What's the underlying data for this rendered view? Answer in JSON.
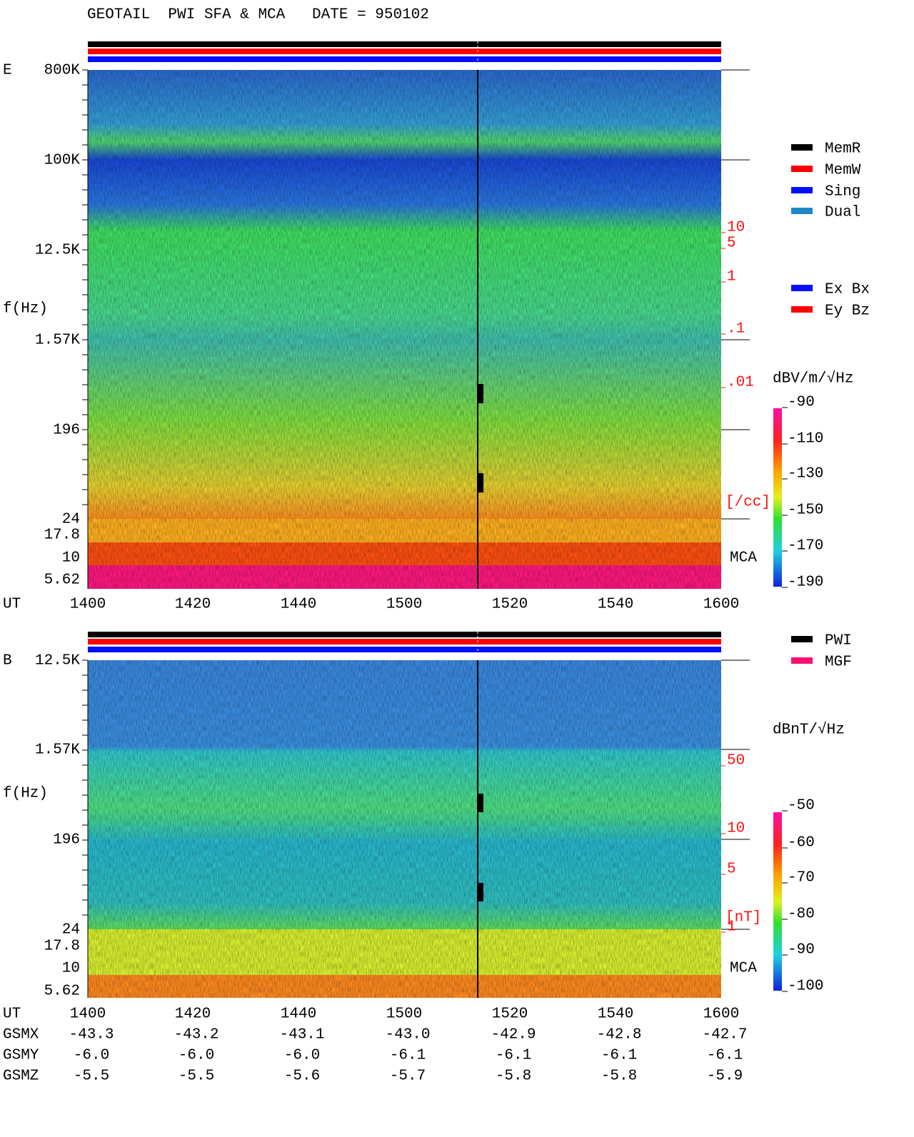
{
  "header": {
    "title": "GEOTAIL  PWI SFA & MCA   DATE = 950102"
  },
  "panels": [
    {
      "label": "E",
      "y_axis_label": "f(Hz)",
      "freq_labels": [
        "800K",
        "100K",
        "12.5K",
        "1.57K",
        "196",
        "24",
        "17.8",
        "10",
        "5.62"
      ],
      "mca_label": "MCA",
      "scale_labels": [
        "10",
        "5",
        "1",
        ".1",
        ".01"
      ],
      "scale_unit": "[/cc]",
      "unit": "dBV/m/√Hz",
      "colorbar_labels": [
        "-90",
        "-110",
        "-130",
        "-150",
        "-170",
        "-190"
      ]
    },
    {
      "label": "B",
      "y_axis_label": "f(Hz)",
      "freq_labels": [
        "12.5K",
        "1.57K",
        "196",
        "24",
        "17.8",
        "10",
        "5.62"
      ],
      "mca_label": "MCA",
      "scale_labels": [
        "50",
        "10",
        "5",
        "1"
      ],
      "scale_unit": "[nT]",
      "unit": "dBnT/√Hz",
      "colorbar_labels": [
        "-50",
        "-60",
        "-70",
        "-80",
        "-90",
        "-100"
      ]
    }
  ],
  "legends": {
    "status": [
      "MemR",
      "MemW",
      "Sing",
      "Dual"
    ],
    "components": [
      "Ex Bx",
      "Ey Bz"
    ],
    "sources": [
      "PWI",
      "MGF"
    ]
  },
  "time_axis": {
    "label": "UT",
    "ticks": [
      "1400",
      "1420",
      "1440",
      "1500",
      "1520",
      "1540",
      "1600"
    ]
  },
  "orbit": {
    "rows": [
      {
        "label": "GSMX",
        "values": [
          "-43.3",
          "-43.2",
          "-43.1",
          "-43.0",
          "-42.9",
          "-42.8",
          "-42.7"
        ]
      },
      {
        "label": "GSMY",
        "values": [
          "-6.0",
          "-6.0",
          "-6.0",
          "-6.1",
          "-6.1",
          "-6.1",
          "-6.1"
        ]
      },
      {
        "label": "GSMZ",
        "values": [
          "-5.5",
          "-5.5",
          "-5.6",
          "-5.7",
          "-5.8",
          "-5.8",
          "-5.9"
        ]
      }
    ]
  }
}
